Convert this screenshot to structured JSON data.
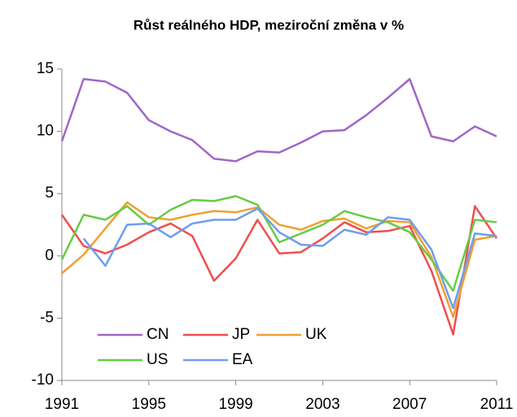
{
  "chart_data": {
    "type": "line",
    "title": "Růst reálného HDP, meziroční změna v %",
    "x": [
      1991,
      1992,
      1993,
      1994,
      1995,
      1996,
      1997,
      1998,
      1999,
      2000,
      2001,
      2002,
      2003,
      2004,
      2005,
      2006,
      2007,
      2008,
      2009,
      2010,
      2011
    ],
    "xlim": [
      1991,
      2011
    ],
    "xticks": [
      1991,
      1995,
      1999,
      2003,
      2007,
      2011
    ],
    "ylim": [
      -10,
      15
    ],
    "yticks": [
      -10,
      -5,
      0,
      5,
      10,
      15
    ],
    "grid": false,
    "legend": "lower left",
    "series": [
      {
        "name": "CN",
        "color": "#a066c8",
        "values": [
          9.2,
          14.2,
          14.0,
          13.1,
          10.9,
          10.0,
          9.3,
          7.8,
          7.6,
          8.4,
          8.3,
          9.1,
          10.0,
          10.1,
          11.3,
          12.7,
          14.2,
          9.6,
          9.2,
          10.4,
          9.6
        ]
      },
      {
        "name": "JP",
        "color": "#f04e4e",
        "values": [
          3.3,
          0.8,
          0.2,
          0.9,
          1.9,
          2.6,
          1.6,
          -2.0,
          -0.2,
          2.9,
          0.2,
          0.3,
          1.4,
          2.7,
          1.9,
          2.0,
          2.4,
          -1.2,
          -6.3,
          4.0,
          1.4
        ]
      },
      {
        "name": "UK",
        "color": "#f0a030",
        "values": [
          -1.4,
          0.1,
          2.2,
          4.3,
          3.1,
          2.9,
          3.3,
          3.6,
          3.5,
          3.9,
          2.5,
          2.1,
          2.8,
          3.0,
          2.2,
          2.8,
          2.7,
          -0.1,
          -4.9,
          1.3,
          1.6
        ]
      },
      {
        "name": "US",
        "color": "#66cc44",
        "values": [
          -0.3,
          3.3,
          2.9,
          4.0,
          2.5,
          3.7,
          4.5,
          4.4,
          4.8,
          4.1,
          1.1,
          1.8,
          2.5,
          3.6,
          3.1,
          2.7,
          1.9,
          -0.3,
          -2.8,
          2.9,
          2.7
        ]
      },
      {
        "name": "EA",
        "color": "#6f9cf0",
        "values": [
          null,
          1.4,
          -0.8,
          2.5,
          2.6,
          1.5,
          2.6,
          2.9,
          2.9,
          3.8,
          1.9,
          0.9,
          0.8,
          2.1,
          1.7,
          3.1,
          2.9,
          0.5,
          -4.2,
          1.8,
          1.6
        ]
      }
    ]
  }
}
